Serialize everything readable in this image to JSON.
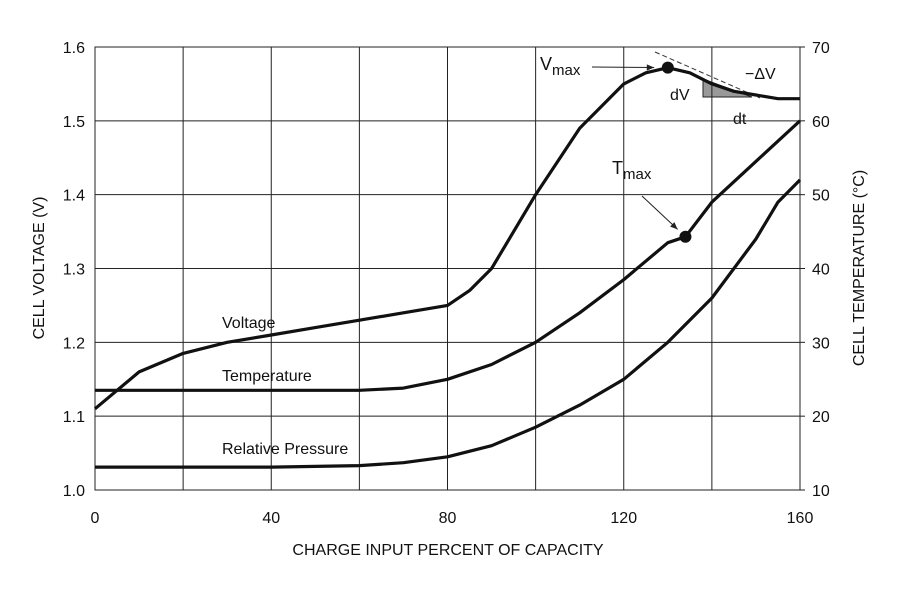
{
  "chart_data": {
    "type": "line",
    "x_label": "CHARGE INPUT PERCENT OF CAPACITY",
    "y_label": "CELL VOLTAGE (V)",
    "y2_label": "CELL TEMPERATURE (°C)",
    "xlim": [
      0,
      160
    ],
    "xticks": [
      0,
      40,
      80,
      120,
      160
    ],
    "x_minor_grid": [
      20,
      60,
      100,
      140
    ],
    "ylim": [
      1.0,
      1.6
    ],
    "yticks": [
      {
        "value": 1,
        "label": "1.0"
      },
      1.1,
      1.2,
      1.3,
      1.4,
      1.5,
      1.6
    ],
    "y2lim": [
      10,
      70
    ],
    "y2ticks": [
      10,
      20,
      30,
      40,
      50,
      60,
      70
    ],
    "grid": true,
    "series": [
      {
        "name": "Voltage",
        "color": "#111111",
        "x": [
          0,
          10,
          20,
          30,
          40,
          50,
          60,
          70,
          80,
          85,
          90,
          100,
          110,
          120,
          125,
          130,
          135,
          140,
          145,
          150,
          155,
          160
        ],
        "values": [
          1.11,
          1.16,
          1.185,
          1.2,
          1.21,
          1.22,
          1.23,
          1.24,
          1.25,
          1.27,
          1.3,
          1.4,
          1.49,
          1.55,
          1.565,
          1.572,
          1.565,
          1.55,
          1.54,
          1.535,
          1.53,
          1.53
        ]
      },
      {
        "name": "Temperature",
        "color": "#111111",
        "axis": "y2",
        "x": [
          0,
          40,
          60,
          70,
          80,
          90,
          100,
          110,
          120,
          130,
          134,
          140,
          150,
          160
        ],
        "values": [
          23.5,
          23.5,
          23.5,
          23.8,
          25,
          27,
          30,
          34,
          38.5,
          43.5,
          44.3,
          49,
          54.5,
          60
        ]
      },
      {
        "name": "Relative Pressure",
        "color": "#111111",
        "x": [
          0,
          40,
          60,
          70,
          80,
          90,
          100,
          110,
          120,
          130,
          140,
          150,
          155,
          160
        ],
        "values": [
          1.031,
          1.031,
          1.033,
          1.037,
          1.045,
          1.06,
          1.085,
          1.115,
          1.15,
          1.2,
          1.26,
          1.34,
          1.39,
          1.42
        ]
      }
    ],
    "annotations": [
      {
        "label": "V",
        "sub": "max",
        "x": 130,
        "y": 1.572
      },
      {
        "label": "T",
        "sub": "max",
        "x": 134,
        "y": 44.3,
        "axis": "y2"
      }
    ],
    "notes": [
      "−ΔV",
      "dV",
      "dt"
    ]
  }
}
